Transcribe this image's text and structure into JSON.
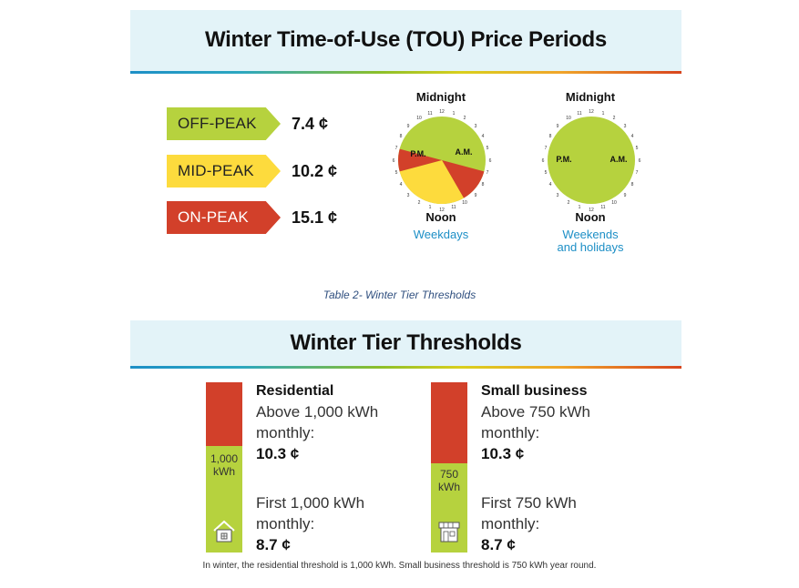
{
  "tou": {
    "title": "Winter Time-of-Use (TOU) Price Periods",
    "periods": [
      {
        "label": "OFF-PEAK",
        "price": "7.4 ¢",
        "color": "#b6d23e"
      },
      {
        "label": "MID-PEAK",
        "price": "10.2 ¢",
        "color": "#fddb3d"
      },
      {
        "label": "ON-PEAK",
        "price": "15.1 ¢",
        "color": "#d2402a"
      }
    ],
    "clocks": [
      {
        "top": "Midnight",
        "bottom": "Noon",
        "am": "A.M.",
        "pm": "P.M.",
        "caption": "Weekdays"
      },
      {
        "top": "Midnight",
        "bottom": "Noon",
        "am": "A.M.",
        "pm": "P.M.",
        "caption_line1": "Weekends",
        "caption_line2": "and holidays"
      }
    ]
  },
  "caption": "Table 2- Winter Tier Thresholds",
  "tiers": {
    "title": "Winter Tier Thresholds",
    "residential": {
      "heading": "Residential",
      "upper_line1": "Above 1,000 kWh",
      "upper_line2": "monthly:",
      "upper_price": "10.3 ¢",
      "lower_line1": "First 1,000 kWh",
      "lower_line2": "monthly:",
      "lower_price": "8.7 ¢",
      "bar_line1": "1,000",
      "bar_line2": "kWh",
      "icon": "house-icon"
    },
    "business": {
      "heading": "Small business",
      "upper_line1": "Above 750 kWh",
      "upper_line2": "monthly:",
      "upper_price": "10.3 ¢",
      "lower_line1": "First 750 kWh",
      "lower_line2": "monthly:",
      "lower_price": "8.7 ¢",
      "bar_line1": "750",
      "bar_line2": "kWh",
      "icon": "storefront-icon"
    },
    "footnote": "In winter, the residential threshold is 1,000 kWh. Small business threshold is 750 kWh year round."
  }
}
